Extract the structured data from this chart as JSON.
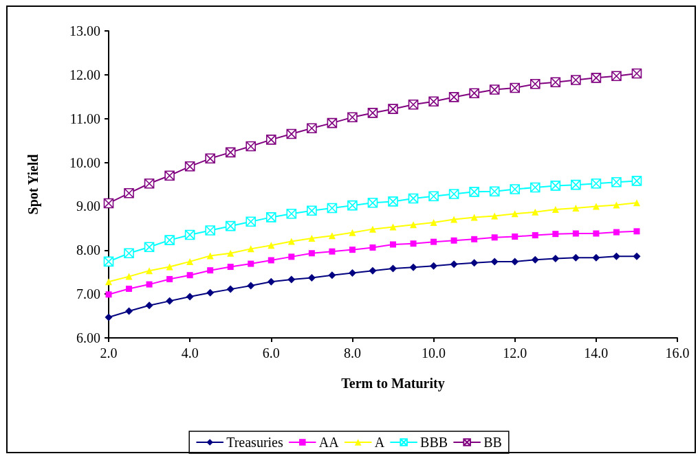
{
  "chart_data": {
    "type": "line",
    "xlabel": "Term to Maturity",
    "ylabel": "Spot Yield",
    "x": [
      2,
      2.5,
      3,
      3.5,
      4,
      4.5,
      5,
      5.5,
      6,
      6.5,
      7,
      7.5,
      8,
      8.5,
      9,
      9.5,
      10,
      10.5,
      11,
      11.5,
      12,
      12.5,
      13,
      13.5,
      14,
      14.5,
      15
    ],
    "series": [
      {
        "name": "Treasuries",
        "color": "#000080",
        "marker": "diamond",
        "values": [
          6.47,
          6.61,
          6.74,
          6.84,
          6.94,
          7.03,
          7.11,
          7.19,
          7.28,
          7.33,
          7.37,
          7.43,
          7.48,
          7.53,
          7.58,
          7.61,
          7.64,
          7.68,
          7.71,
          7.74,
          7.74,
          7.78,
          7.81,
          7.83,
          7.83,
          7.86,
          7.86
        ]
      },
      {
        "name": "AA",
        "color": "#ff00ff",
        "marker": "square",
        "values": [
          6.99,
          7.12,
          7.22,
          7.34,
          7.43,
          7.54,
          7.62,
          7.69,
          7.77,
          7.85,
          7.93,
          7.97,
          8.01,
          8.06,
          8.13,
          8.15,
          8.19,
          8.22,
          8.25,
          8.29,
          8.31,
          8.34,
          8.37,
          8.38,
          8.38,
          8.41,
          8.43
        ]
      },
      {
        "name": "A",
        "color": "#ffff00",
        "marker": "triangle",
        "values": [
          7.28,
          7.4,
          7.53,
          7.62,
          7.74,
          7.87,
          7.93,
          8.03,
          8.11,
          8.2,
          8.27,
          8.33,
          8.4,
          8.48,
          8.53,
          8.58,
          8.63,
          8.7,
          8.75,
          8.78,
          8.83,
          8.87,
          8.93,
          8.96,
          9.0,
          9.03,
          9.08
        ]
      },
      {
        "name": "BBB",
        "color": "#00ffff",
        "marker": "cross",
        "values": [
          7.74,
          7.93,
          8.07,
          8.23,
          8.35,
          8.45,
          8.55,
          8.65,
          8.75,
          8.83,
          8.9,
          8.96,
          9.02,
          9.08,
          9.11,
          9.18,
          9.23,
          9.28,
          9.33,
          9.34,
          9.39,
          9.43,
          9.47,
          9.49,
          9.52,
          9.55,
          9.58
        ]
      },
      {
        "name": "BB",
        "color": "#800080",
        "marker": "cross",
        "values": [
          9.07,
          9.3,
          9.52,
          9.7,
          9.91,
          10.09,
          10.23,
          10.37,
          10.52,
          10.65,
          10.78,
          10.9,
          11.03,
          11.13,
          11.22,
          11.32,
          11.39,
          11.49,
          11.58,
          11.66,
          11.7,
          11.79,
          11.83,
          11.88,
          11.93,
          11.97,
          12.03
        ]
      }
    ],
    "xlim": [
      2,
      16
    ],
    "xticks": [
      {
        "value": 2,
        "label": "2.0"
      },
      {
        "value": 4,
        "label": "4.0"
      },
      {
        "value": 6,
        "label": "6.0"
      },
      {
        "value": 8,
        "label": "8.0"
      },
      {
        "value": 10,
        "label": "10.0"
      },
      {
        "value": 12,
        "label": "12.0"
      },
      {
        "value": 14,
        "label": "14.0"
      },
      {
        "value": 16,
        "label": "16.0"
      }
    ],
    "ylim": [
      6,
      13
    ],
    "yticks": [
      {
        "value": 6,
        "label": "6.00"
      },
      {
        "value": 7,
        "label": "7.00"
      },
      {
        "value": 8,
        "label": "8.00"
      },
      {
        "value": 9,
        "label": "9.00"
      },
      {
        "value": 10,
        "label": "10.00"
      },
      {
        "value": 11,
        "label": "11.00"
      },
      {
        "value": 12,
        "label": "12.00"
      },
      {
        "value": 13,
        "label": "13.00"
      }
    ],
    "grid": false,
    "legend": "bottom",
    "line_style": "solid"
  }
}
